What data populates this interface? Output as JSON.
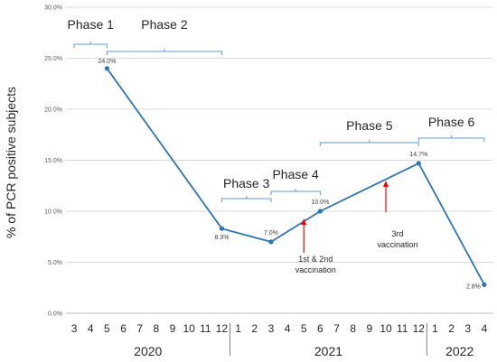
{
  "chart_data": {
    "type": "line",
    "ylabel": "% of PCR positive subjects",
    "ylim": [
      0,
      30
    ],
    "yticks": [
      "0.0%",
      "5.0%",
      "10.0%",
      "15.0%",
      "20.0%",
      "25.0%",
      "30.0%"
    ],
    "grid": true,
    "x_months": [
      "3",
      "4",
      "5",
      "6",
      "7",
      "8",
      "9",
      "10",
      "11",
      "12",
      "1",
      "2",
      "3",
      "4",
      "5",
      "6",
      "7",
      "8",
      "9",
      "10",
      "11",
      "12",
      "1",
      "2",
      "3",
      "4"
    ],
    "years": [
      "2020",
      "2021",
      "2022"
    ],
    "series": [
      {
        "color": "#2E75B6",
        "points": [
          {
            "x": "2020-05",
            "y": 24.0,
            "label": "24.0%"
          },
          {
            "x": "2020-12",
            "y": 8.3,
            "label": "8.3%"
          },
          {
            "x": "2021-03",
            "y": 7.0,
            "label": "7.0%"
          },
          {
            "x": "2021-06",
            "y": 10.0,
            "label": "10.0%"
          },
          {
            "x": "2021-12",
            "y": 14.7,
            "label": "14.7%"
          },
          {
            "x": "2022-04",
            "y": 2.8,
            "label": "2.8%"
          }
        ]
      }
    ],
    "phases": [
      {
        "label": "Phase 1",
        "start": "2020-03",
        "end": "2020-05"
      },
      {
        "label": "Phase 2",
        "start": "2020-05",
        "end": "2020-12"
      },
      {
        "label": "Phase 3",
        "start": "2020-12",
        "end": "2021-03"
      },
      {
        "label": "Phase 4",
        "start": "2021-03",
        "end": "2021-06"
      },
      {
        "label": "Phase 5",
        "start": "2021-06",
        "end": "2021-12"
      },
      {
        "label": "Phase 6",
        "start": "2021-12",
        "end": "2022-04"
      }
    ],
    "annotations": [
      {
        "lines": [
          "1st & 2nd",
          "vaccination"
        ],
        "x": "2021-05"
      },
      {
        "lines": [
          "3rd",
          "vaccination"
        ],
        "x": "2021-10"
      }
    ]
  }
}
